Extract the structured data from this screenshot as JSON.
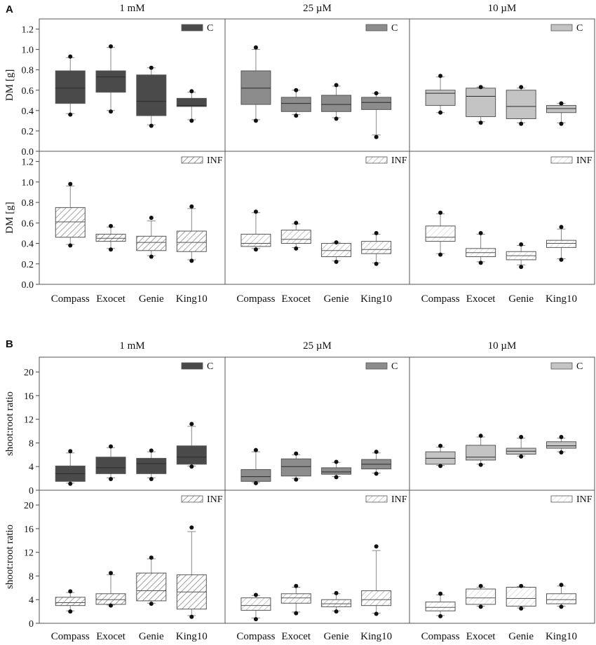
{
  "colors": {
    "c_fill": [
      "#4a4a4a",
      "#8c8c8c",
      "#c4c4c4"
    ],
    "inf_hatch": [
      "#707070",
      "#a6a6a6",
      "#d0d0d0"
    ],
    "frame": "#555555"
  },
  "chart_data": [
    {
      "panel": "A",
      "type": "boxplot",
      "ylabel": "DM [g]",
      "columns": [
        "1 mM",
        "25 µM",
        "10 µM"
      ],
      "categories": [
        "Compass",
        "Exocet",
        "Genie",
        "King10"
      ],
      "rows": [
        {
          "legend": "C",
          "ylim": [
            0,
            1.3
          ],
          "yticks": [
            0.0,
            0.2,
            0.4,
            0.6,
            0.8,
            1.0,
            1.2
          ],
          "tick_labels": [
            "0.0",
            "0.2",
            "0.4",
            "0.6",
            "0.8",
            "1.0",
            "1.2"
          ],
          "groups": [
            [
              {
                "q1": 0.47,
                "median": 0.62,
                "q3": 0.79,
                "wlo": 0.37,
                "whi": 0.92,
                "outliers": [
                  0.36,
                  0.93
                ]
              },
              {
                "q1": 0.58,
                "median": 0.73,
                "q3": 0.79,
                "wlo": 0.4,
                "whi": 1.02,
                "outliers": [
                  0.39,
                  1.03
                ]
              },
              {
                "q1": 0.35,
                "median": 0.49,
                "q3": 0.75,
                "wlo": 0.26,
                "whi": 0.82,
                "outliers": [
                  0.25,
                  0.82
                ]
              },
              {
                "q1": 0.44,
                "median": 0.45,
                "q3": 0.52,
                "wlo": 0.31,
                "whi": 0.58,
                "outliers": [
                  0.3,
                  0.59
                ]
              }
            ],
            [
              {
                "q1": 0.46,
                "median": 0.62,
                "q3": 0.79,
                "wlo": 0.31,
                "whi": 1.0,
                "outliers": [
                  0.3,
                  1.02
                ]
              },
              {
                "q1": 0.39,
                "median": 0.47,
                "q3": 0.53,
                "wlo": 0.36,
                "whi": 0.6,
                "outliers": [
                  0.35,
                  0.6
                ]
              },
              {
                "q1": 0.39,
                "median": 0.46,
                "q3": 0.55,
                "wlo": 0.33,
                "whi": 0.64,
                "outliers": [
                  0.32,
                  0.65
                ]
              },
              {
                "q1": 0.41,
                "median": 0.48,
                "q3": 0.53,
                "wlo": 0.16,
                "whi": 0.57,
                "outliers": [
                  0.14,
                  0.57
                ]
              }
            ],
            [
              {
                "q1": 0.45,
                "median": 0.57,
                "q3": 0.6,
                "wlo": 0.38,
                "whi": 0.73,
                "outliers": [
                  0.38,
                  0.74
                ]
              },
              {
                "q1": 0.34,
                "median": 0.54,
                "q3": 0.62,
                "wlo": 0.29,
                "whi": 0.63,
                "outliers": [
                  0.28,
                  0.63
                ]
              },
              {
                "q1": 0.32,
                "median": 0.44,
                "q3": 0.6,
                "wlo": 0.28,
                "whi": 0.62,
                "outliers": [
                  0.27,
                  0.63
                ]
              },
              {
                "q1": 0.38,
                "median": 0.42,
                "q3": 0.45,
                "wlo": 0.28,
                "whi": 0.47,
                "outliers": [
                  0.27,
                  0.47
                ]
              }
            ]
          ]
        },
        {
          "legend": "INF",
          "ylim": [
            0,
            1.3
          ],
          "yticks": [
            0.0,
            0.2,
            0.4,
            0.6,
            0.8,
            1.0,
            1.2
          ],
          "tick_labels": [
            "0.0",
            "0.2",
            "0.4",
            "0.6",
            "0.8",
            "1.0",
            "1.2"
          ],
          "groups": [
            [
              {
                "q1": 0.46,
                "median": 0.61,
                "q3": 0.75,
                "wlo": 0.39,
                "whi": 0.96,
                "outliers": [
                  0.38,
                  0.98
                ]
              },
              {
                "q1": 0.42,
                "median": 0.45,
                "q3": 0.49,
                "wlo": 0.35,
                "whi": 0.56,
                "outliers": [
                  0.34,
                  0.57
                ]
              },
              {
                "q1": 0.33,
                "median": 0.41,
                "q3": 0.47,
                "wlo": 0.28,
                "whi": 0.62,
                "outliers": [
                  0.27,
                  0.65
                ]
              },
              {
                "q1": 0.32,
                "median": 0.41,
                "q3": 0.52,
                "wlo": 0.24,
                "whi": 0.74,
                "outliers": [
                  0.23,
                  0.76
                ]
              }
            ],
            [
              {
                "q1": 0.37,
                "median": 0.4,
                "q3": 0.49,
                "wlo": 0.35,
                "whi": 0.7,
                "outliers": [
                  0.34,
                  0.71
                ]
              },
              {
                "q1": 0.4,
                "median": 0.44,
                "q3": 0.53,
                "wlo": 0.36,
                "whi": 0.59,
                "outliers": [
                  0.35,
                  0.6
                ]
              },
              {
                "q1": 0.27,
                "median": 0.33,
                "q3": 0.4,
                "wlo": 0.23,
                "whi": 0.41,
                "outliers": [
                  0.22,
                  0.41
                ]
              },
              {
                "q1": 0.3,
                "median": 0.34,
                "q3": 0.42,
                "wlo": 0.21,
                "whi": 0.49,
                "outliers": [
                  0.2,
                  0.5
                ]
              }
            ],
            [
              {
                "q1": 0.42,
                "median": 0.46,
                "q3": 0.57,
                "wlo": 0.3,
                "whi": 0.69,
                "outliers": [
                  0.29,
                  0.7
                ]
              },
              {
                "q1": 0.27,
                "median": 0.31,
                "q3": 0.35,
                "wlo": 0.22,
                "whi": 0.49,
                "outliers": [
                  0.21,
                  0.5
                ]
              },
              {
                "q1": 0.24,
                "median": 0.28,
                "q3": 0.32,
                "wlo": 0.19,
                "whi": 0.38,
                "outliers": [
                  0.17,
                  0.39
                ]
              },
              {
                "q1": 0.36,
                "median": 0.4,
                "q3": 0.43,
                "wlo": 0.25,
                "whi": 0.54,
                "outliers": [
                  0.24,
                  0.56
                ]
              }
            ]
          ]
        }
      ]
    },
    {
      "panel": "B",
      "type": "boxplot",
      "ylabel": "shoot:root ratio",
      "columns": [
        "1 mM",
        "25 µM",
        "10 µM"
      ],
      "categories": [
        "Compass",
        "Exocet",
        "Genie",
        "King10"
      ],
      "rows": [
        {
          "legend": "C",
          "ylim": [
            0,
            22.5
          ],
          "yticks": [
            0,
            4,
            8,
            12,
            16,
            20
          ],
          "tick_labels": [
            "0",
            "4",
            "8",
            "12",
            "16",
            "20"
          ],
          "groups": [
            [
              {
                "q1": 1.5,
                "median": 2.8,
                "q3": 4.1,
                "wlo": 1.2,
                "whi": 6.3,
                "outliers": [
                  1.1,
                  6.6
                ]
              },
              {
                "q1": 2.8,
                "median": 3.8,
                "q3": 5.6,
                "wlo": 2.1,
                "whi": 7.2,
                "outliers": [
                  1.9,
                  7.4
                ]
              },
              {
                "q1": 2.8,
                "median": 4.5,
                "q3": 5.4,
                "wlo": 2.1,
                "whi": 6.5,
                "outliers": [
                  1.9,
                  6.7
                ]
              },
              {
                "q1": 4.4,
                "median": 5.6,
                "q3": 7.5,
                "wlo": 4.1,
                "whi": 10.8,
                "outliers": [
                  4.0,
                  11.2
                ]
              }
            ],
            [
              {
                "q1": 1.5,
                "median": 2.3,
                "q3": 3.5,
                "wlo": 1.3,
                "whi": 6.5,
                "outliers": [
                  1.2,
                  6.8
                ]
              },
              {
                "q1": 2.4,
                "median": 4.0,
                "q3": 5.3,
                "wlo": 2.0,
                "whi": 6.0,
                "outliers": [
                  1.8,
                  6.2
                ]
              },
              {
                "q1": 2.7,
                "median": 3.1,
                "q3": 3.8,
                "wlo": 2.3,
                "whi": 4.7,
                "outliers": [
                  2.2,
                  4.8
                ]
              },
              {
                "q1": 3.6,
                "median": 4.4,
                "q3": 5.2,
                "wlo": 2.9,
                "whi": 6.3,
                "outliers": [
                  2.8,
                  6.5
                ]
              }
            ],
            [
              {
                "q1": 4.4,
                "median": 5.4,
                "q3": 6.5,
                "wlo": 4.2,
                "whi": 7.3,
                "outliers": [
                  4.1,
                  7.5
                ]
              },
              {
                "q1": 5.1,
                "median": 5.6,
                "q3": 7.6,
                "wlo": 4.4,
                "whi": 9.0,
                "outliers": [
                  4.3,
                  9.2
                ]
              },
              {
                "q1": 6.1,
                "median": 6.6,
                "q3": 7.1,
                "wlo": 5.8,
                "whi": 8.8,
                "outliers": [
                  5.7,
                  9.0
                ]
              },
              {
                "q1": 7.1,
                "median": 7.5,
                "q3": 8.2,
                "wlo": 6.5,
                "whi": 8.8,
                "outliers": [
                  6.4,
                  9.0
                ]
              }
            ]
          ]
        },
        {
          "legend": "INF",
          "ylim": [
            0,
            22.5
          ],
          "yticks": [
            0,
            4,
            8,
            12,
            16,
            20
          ],
          "tick_labels": [
            "0",
            "4",
            "8",
            "12",
            "16",
            "20"
          ],
          "groups": [
            [
              {
                "q1": 3.0,
                "median": 3.5,
                "q3": 4.4,
                "wlo": 2.1,
                "whi": 5.2,
                "outliers": [
                  2.0,
                  5.4
                ]
              },
              {
                "q1": 3.2,
                "median": 4.0,
                "q3": 5.0,
                "wlo": 3.1,
                "whi": 8.2,
                "outliers": [
                  3.0,
                  8.5
                ]
              },
              {
                "q1": 3.8,
                "median": 5.5,
                "q3": 8.5,
                "wlo": 3.4,
                "whi": 10.9,
                "outliers": [
                  3.3,
                  11.1
                ]
              },
              {
                "q1": 2.4,
                "median": 5.3,
                "q3": 8.2,
                "wlo": 1.3,
                "whi": 15.5,
                "outliers": [
                  1.1,
                  16.2
                ]
              }
            ],
            [
              {
                "q1": 2.2,
                "median": 3.0,
                "q3": 4.3,
                "wlo": 0.9,
                "whi": 4.7,
                "outliers": [
                  0.7,
                  4.8
                ]
              },
              {
                "q1": 3.4,
                "median": 4.3,
                "q3": 5.0,
                "wlo": 1.9,
                "whi": 6.1,
                "outliers": [
                  1.7,
                  6.3
                ]
              },
              {
                "q1": 2.8,
                "median": 3.3,
                "q3": 4.0,
                "wlo": 2.1,
                "whi": 5.0,
                "outliers": [
                  2.0,
                  5.1
                ]
              },
              {
                "q1": 3.0,
                "median": 4.0,
                "q3": 5.5,
                "wlo": 1.7,
                "whi": 12.3,
                "outliers": [
                  1.6,
                  13.0
                ]
              }
            ],
            [
              {
                "q1": 2.1,
                "median": 2.7,
                "q3": 3.6,
                "wlo": 1.3,
                "whi": 4.8,
                "outliers": [
                  1.2,
                  5.0
                ]
              },
              {
                "q1": 3.2,
                "median": 4.3,
                "q3": 5.8,
                "wlo": 2.9,
                "whi": 6.1,
                "outliers": [
                  2.8,
                  6.3
                ]
              },
              {
                "q1": 2.9,
                "median": 4.2,
                "q3": 6.1,
                "wlo": 2.6,
                "whi": 6.2,
                "outliers": [
                  2.5,
                  6.3
                ]
              },
              {
                "q1": 3.3,
                "median": 4.0,
                "q3": 5.0,
                "wlo": 2.9,
                "whi": 6.3,
                "outliers": [
                  2.8,
                  6.5
                ]
              }
            ]
          ]
        }
      ]
    }
  ]
}
